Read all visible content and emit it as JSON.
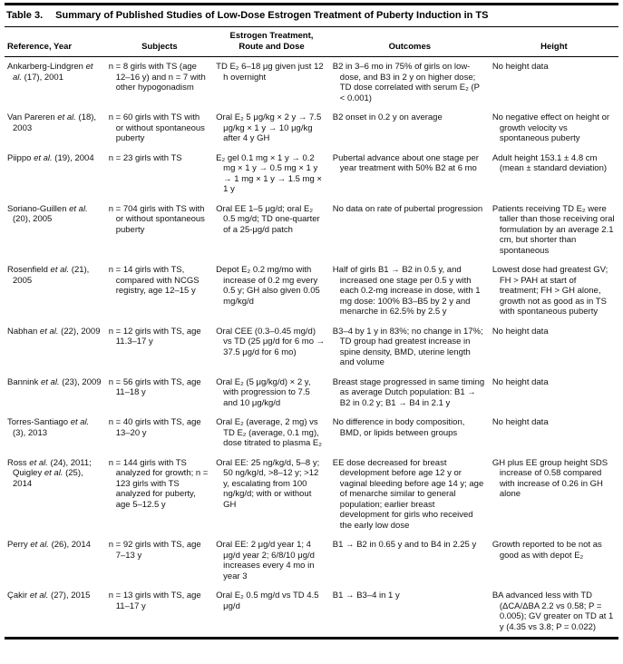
{
  "caption": {
    "label": "Table 3.",
    "title": "Summary of Published Studies of Low-Dose Estrogen Treatment of Puberty Induction in TS"
  },
  "columns": [
    {
      "key": "reference",
      "label": "Reference, Year"
    },
    {
      "key": "subjects",
      "label": "Subjects"
    },
    {
      "key": "treatment",
      "label": "Estrogen Treatment,\nRoute and Dose"
    },
    {
      "key": "outcomes",
      "label": "Outcomes"
    },
    {
      "key": "height",
      "label": "Height"
    }
  ],
  "rows": [
    {
      "reference": [
        {
          "text": "Ankarberg-Lindgren ",
          "italic": false
        },
        {
          "text": "et al.",
          "italic": true
        },
        {
          "text": " (17), 2001",
          "italic": false
        }
      ],
      "subjects": "n = 8 girls with TS (age 12–16 y) and n = 7 with other hypogonadism",
      "treatment": "TD E₂ 6–18 μg given just 12 h overnight",
      "outcomes": "B2 in 3–6 mo in 75% of girls on low-dose, and B3 in 2 y on higher dose; TD dose correlated with serum E₂ (P < 0.001)",
      "height": "No height data"
    },
    {
      "reference": [
        {
          "text": "Van Pareren ",
          "italic": false
        },
        {
          "text": "et al.",
          "italic": true
        },
        {
          "text": " (18), 2003",
          "italic": false
        }
      ],
      "subjects": "n = 60 girls with TS with or without spontaneous puberty",
      "treatment": "Oral E₂ 5 μg/kg × 2 y → 7.5 μg/kg × 1 y → 10 μg/kg after 4 y GH",
      "outcomes": "B2 onset in 0.2 y on average",
      "height": "No negative effect on height or growth velocity vs spontaneous puberty"
    },
    {
      "reference": [
        {
          "text": "Piippo ",
          "italic": false
        },
        {
          "text": "et al.",
          "italic": true
        },
        {
          "text": " (19), 2004",
          "italic": false
        }
      ],
      "subjects": "n = 23 girls with TS",
      "treatment": "E₂ gel 0.1 mg × 1 y → 0.2 mg × 1 y → 0.5 mg × 1 y → 1 mg × 1 y → 1.5 mg × 1 y",
      "outcomes": "Pubertal advance about one stage per year treatment with 50% B2 at 6 mo",
      "height": "Adult height 153.1 ± 4.8 cm (mean ± standard deviation)"
    },
    {
      "reference": [
        {
          "text": "Soriano-Guillen ",
          "italic": false
        },
        {
          "text": "et al.",
          "italic": true
        },
        {
          "text": " (20), 2005",
          "italic": false
        }
      ],
      "subjects": "n = 704 girls with TS with or without spontaneous puberty",
      "treatment": "Oral EE 1–5 μg/d; oral E₂ 0.5 mg/d; TD one-quarter of a 25-μg/d patch",
      "outcomes": "No data on rate of pubertal progression",
      "height": "Patients receiving TD E₂ were taller than those receiving oral formulation by an average 2.1 cm, but shorter than spontaneous"
    },
    {
      "reference": [
        {
          "text": "Rosenfield ",
          "italic": false
        },
        {
          "text": "et al.",
          "italic": true
        },
        {
          "text": " (21), 2005",
          "italic": false
        }
      ],
      "subjects": "n = 14 girls with TS, compared with NCGS registry, age 12–15 y",
      "treatment": "Depot E₂ 0.2 mg/mo with increase of 0.2 mg every 0.5 y; GH also given 0.05 mg/kg/d",
      "outcomes": "Half of girls B1 → B2 in 0.5 y, and increased one stage per 0.5 y with each 0.2-mg increase in dose, with 1 mg dose: 100% B3–B5 by 2 y and menarche in 62.5% by 2.5 y",
      "height": "Lowest dose had greatest GV; FH > PAH at start of treatment; FH > GH alone, growth not as good as in TS with spontaneous puberty"
    },
    {
      "reference": [
        {
          "text": "Nabhan ",
          "italic": false
        },
        {
          "text": "et al.",
          "italic": true
        },
        {
          "text": " (22), 2009",
          "italic": false
        }
      ],
      "subjects": "n = 12 girls with TS, age 11.3–17 y",
      "treatment": "Oral CEE (0.3–0.45 mg/d) vs TD (25 μg/d for 6 mo → 37.5 μg/d for 6 mo)",
      "outcomes": "B3–4 by 1 y in 83%; no change in 17%; TD group had greatest increase in spine density, BMD, uterine length and volume",
      "height": "No height data"
    },
    {
      "reference": [
        {
          "text": "Bannink ",
          "italic": false
        },
        {
          "text": "et al.",
          "italic": true
        },
        {
          "text": " (23), 2009",
          "italic": false
        }
      ],
      "subjects": "n = 56 girls with TS, age 11–18 y",
      "treatment": "Oral E₂ (5 μg/kg/d) × 2 y, with progression to 7.5 and 10 μg/kg/d",
      "outcomes": "Breast stage progressed in same timing as average Dutch population: B1 → B2 in 0.2 y; B1 → B4 in 2.1 y",
      "height": "No height data"
    },
    {
      "reference": [
        {
          "text": "Torres-Santiago ",
          "italic": false
        },
        {
          "text": "et al.",
          "italic": true
        },
        {
          "text": " (3), 2013",
          "italic": false
        }
      ],
      "subjects": "n = 40 girls with TS, age 13–20 y",
      "treatment": "Oral E₂ (average, 2 mg) vs TD E₂ (average, 0.1 mg), dose titrated to plasma E₂",
      "outcomes": "No difference in body composition, BMD, or lipids between groups",
      "height": "No height data"
    },
    {
      "reference": [
        {
          "text": "Ross ",
          "italic": false
        },
        {
          "text": "et al.",
          "italic": true
        },
        {
          "text": " (24), 2011; Quigley ",
          "italic": false
        },
        {
          "text": "et al.",
          "italic": true
        },
        {
          "text": " (25), 2014",
          "italic": false
        }
      ],
      "subjects": "n = 144 girls with TS analyzed for growth; n = 123 girls with TS analyzed for puberty, age 5–12.5 y",
      "treatment": "Oral EE: 25 ng/kg/d, 5–8 y; 50 ng/kg/d, >8–12 y; >12 y, escalating from 100 ng/kg/d; with or without GH",
      "outcomes": "EE dose decreased for breast development before age 12 y or vaginal bleeding before age 14 y; age of menarche similar to general population; earlier breast development for girls who received the early low dose",
      "height": "GH plus EE group height SDS increase of 0.58 compared with increase of 0.26 in GH alone"
    },
    {
      "reference": [
        {
          "text": "Perry ",
          "italic": false
        },
        {
          "text": "et al.",
          "italic": true
        },
        {
          "text": " (26), 2014",
          "italic": false
        }
      ],
      "subjects": "n = 92 girls with TS, age 7–13 y",
      "treatment": "Oral EE: 2 μg/d year 1; 4 μg/d year 2; 6/8/10 μg/d increases every 4 mo in year 3",
      "outcomes": "B1 → B2 in 0.65 y and to B4 in 2.25 y",
      "height": "Growth reported to be not as good as with depot E₂"
    },
    {
      "reference": [
        {
          "text": "Çakir ",
          "italic": false
        },
        {
          "text": "et al.",
          "italic": true
        },
        {
          "text": " (27), 2015",
          "italic": false
        }
      ],
      "subjects": "n = 13 girls with TS, age 11–17 y",
      "treatment": "Oral E₂ 0.5 mg/d vs TD 4.5 μg/d",
      "outcomes": "B1 → B3–4 in 1 y",
      "height": "BA advanced less with TD (ΔCA/ΔBA 2.2 vs 0.58; P = 0.005); GV greater on TD at 1 y (4.35 vs 3.8; P = 0.022)"
    }
  ]
}
